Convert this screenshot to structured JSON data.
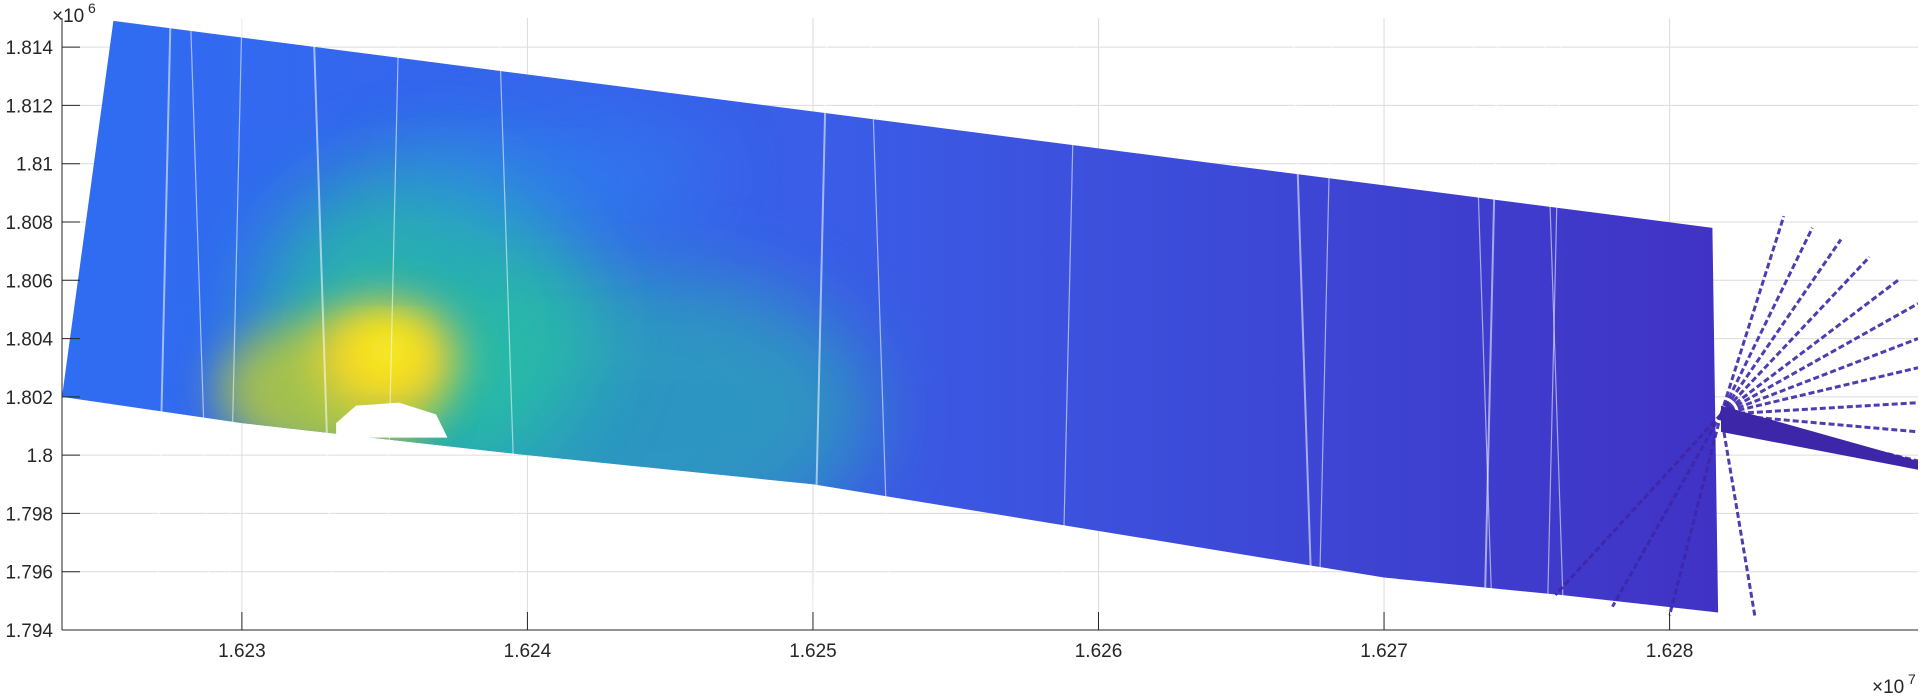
{
  "chart_data": {
    "type": "heatmap",
    "title": "",
    "xlabel": "",
    "ylabel": "",
    "colormap": "parula",
    "colors": {
      "low": "#3e26a8",
      "mid_low": "#2e87f0",
      "mid": "#27c2a0",
      "high": "#f9d42b",
      "peak": "#f9fb0e"
    },
    "grid": true,
    "xlim": [
      1.62237,
      1.62887
    ],
    "ylim": [
      1.794,
      1.815
    ],
    "x_multiplier": {
      "base": "×10",
      "exp": "7"
    },
    "y_multiplier": {
      "base": "×10",
      "exp": "6"
    },
    "x_ticks": [
      {
        "value": 1.623,
        "label": "1.623"
      },
      {
        "value": 1.624,
        "label": "1.624"
      },
      {
        "value": 1.625,
        "label": "1.625"
      },
      {
        "value": 1.626,
        "label": "1.626"
      },
      {
        "value": 1.627,
        "label": "1.627"
      },
      {
        "value": 1.628,
        "label": "1.628"
      }
    ],
    "y_ticks": [
      {
        "value": 1.794,
        "label": "1.794"
      },
      {
        "value": 1.796,
        "label": "1.796"
      },
      {
        "value": 1.798,
        "label": "1.798"
      },
      {
        "value": 1.8,
        "label": "1.8"
      },
      {
        "value": 1.802,
        "label": "1.802"
      },
      {
        "value": 1.804,
        "label": "1.804"
      },
      {
        "value": 1.806,
        "label": "1.806"
      },
      {
        "value": 1.808,
        "label": "1.808"
      },
      {
        "value": 1.81,
        "label": "1.81"
      },
      {
        "value": 1.812,
        "label": "1.812"
      },
      {
        "value": 1.814,
        "label": "1.814"
      }
    ],
    "coverage_polygon": [
      [
        1.62255,
        1.8149
      ],
      [
        1.62815,
        1.8078
      ],
      [
        1.62817,
        1.7946
      ],
      [
        1.62762,
        1.7952
      ],
      [
        1.627,
        1.7958
      ],
      [
        1.625,
        1.799
      ],
      [
        1.624,
        1.8
      ],
      [
        1.623,
        1.8011
      ],
      [
        1.62237,
        1.802
      ]
    ],
    "hotspots": [
      {
        "x": 1.62351,
        "y": 1.8034,
        "intensity": 1.0
      },
      {
        "x": 1.62365,
        "y": 1.8045,
        "intensity": 0.55
      },
      {
        "x": 1.6233,
        "y": 1.8022,
        "intensity": 0.7
      },
      {
        "x": 1.6244,
        "y": 1.8015,
        "intensity": 0.35
      }
    ],
    "fan_origin": [
      1.62818,
      1.8014
    ],
    "fan_rays": [
      [
        1.6284,
        1.8082
      ],
      [
        1.6285,
        1.8078
      ],
      [
        1.6286,
        1.8074
      ],
      [
        1.6287,
        1.8068
      ],
      [
        1.6288,
        1.806
      ],
      [
        1.62887,
        1.8052
      ],
      [
        1.62887,
        1.804
      ],
      [
        1.62887,
        1.803
      ],
      [
        1.62887,
        1.8018
      ],
      [
        1.62887,
        1.8008
      ],
      [
        1.62887,
        1.7998
      ],
      [
        1.6283,
        1.7944
      ],
      [
        1.628,
        1.7945
      ],
      [
        1.6278,
        1.7948
      ],
      [
        1.6276,
        1.7952
      ]
    ]
  }
}
